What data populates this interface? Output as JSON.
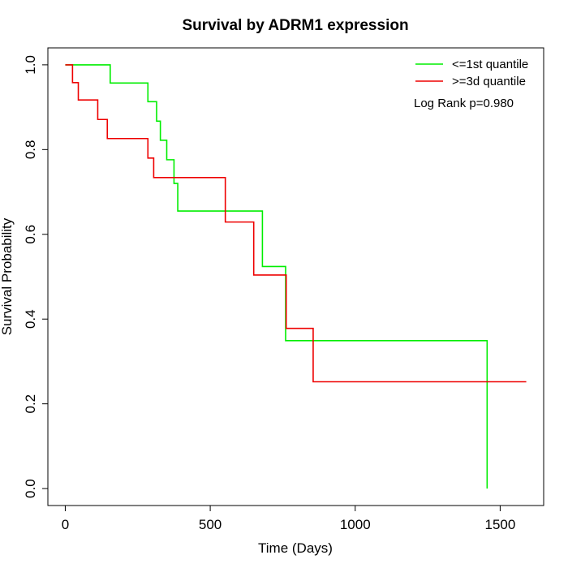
{
  "chart_data": {
    "type": "line",
    "title": "Survival by ADRM1 expression",
    "xlabel": "Time (Days)",
    "ylabel": "Survival Probability",
    "xlim": [
      -60,
      1650
    ],
    "ylim": [
      -0.04,
      1.04
    ],
    "xticks": [
      0,
      500,
      1000,
      1500
    ],
    "yticks": [
      0.0,
      0.2,
      0.4,
      0.6,
      0.8,
      1.0
    ],
    "xtick_labels": [
      "0",
      "500",
      "1000",
      "1500"
    ],
    "ytick_labels": [
      "0.0",
      "0.2",
      "0.4",
      "0.6",
      "0.8",
      "1.0"
    ],
    "grid": false,
    "legend_position": "top-right",
    "annotation": "Log Rank p=0.980",
    "series": [
      {
        "name": "<=1st quantile",
        "color": "#00ee00",
        "step_points": [
          [
            0,
            1.0
          ],
          [
            155,
            0.957
          ],
          [
            285,
            0.913
          ],
          [
            315,
            0.867
          ],
          [
            328,
            0.822
          ],
          [
            350,
            0.776
          ],
          [
            375,
            0.72
          ],
          [
            388,
            0.655
          ],
          [
            680,
            0.524
          ],
          [
            760,
            0.349
          ],
          [
            1455,
            0.0
          ]
        ]
      },
      {
        "name": ">=3d quantile",
        "color": "#ee0000",
        "step_points": [
          [
            0,
            1.0
          ],
          [
            25,
            0.958
          ],
          [
            45,
            0.917
          ],
          [
            112,
            0.871
          ],
          [
            145,
            0.826
          ],
          [
            285,
            0.78
          ],
          [
            305,
            0.734
          ],
          [
            552,
            0.629
          ],
          [
            650,
            0.504
          ],
          [
            762,
            0.378
          ],
          [
            855,
            0.252
          ],
          [
            1590,
            0.252
          ]
        ]
      }
    ]
  }
}
